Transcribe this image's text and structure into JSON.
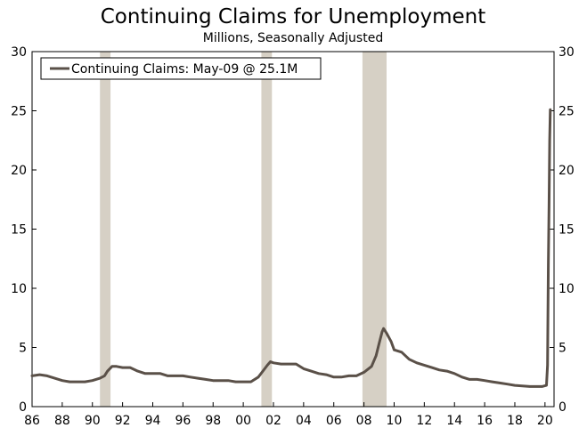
{
  "chart_data": {
    "type": "line",
    "title": "Continuing Claims for Unemployment",
    "subtitle": "Millions, Seasonally Adjusted",
    "xlabel": "",
    "ylabel": "",
    "xlim": [
      1986,
      2020.6
    ],
    "ylim": [
      0,
      30
    ],
    "y_ticks": [
      0,
      5,
      10,
      15,
      20,
      25,
      30
    ],
    "x_ticks": [
      {
        "value": 1986,
        "label": "86"
      },
      {
        "value": 1988,
        "label": "88"
      },
      {
        "value": 1990,
        "label": "90"
      },
      {
        "value": 1992,
        "label": "92"
      },
      {
        "value": 1994,
        "label": "94"
      },
      {
        "value": 1996,
        "label": "96"
      },
      {
        "value": 1998,
        "label": "98"
      },
      {
        "value": 2000,
        "label": "00"
      },
      {
        "value": 2002,
        "label": "02"
      },
      {
        "value": 2004,
        "label": "04"
      },
      {
        "value": 2006,
        "label": "06"
      },
      {
        "value": 2008,
        "label": "08"
      },
      {
        "value": 2010,
        "label": "10"
      },
      {
        "value": 2012,
        "label": "12"
      },
      {
        "value": 2014,
        "label": "14"
      },
      {
        "value": 2016,
        "label": "16"
      },
      {
        "value": 2018,
        "label": "18"
      },
      {
        "value": 2020,
        "label": "20"
      }
    ],
    "grid": false,
    "right_axis": true,
    "legend_position": "top-left",
    "recessions": [
      {
        "start": 1990.5,
        "end": 1991.2
      },
      {
        "start": 2001.2,
        "end": 2001.9
      },
      {
        "start": 2007.9,
        "end": 2009.5
      }
    ],
    "series": [
      {
        "name": "Continuing Claims: May-09 @ 25.1M",
        "color": "#5a5048",
        "points": [
          [
            1986.0,
            2.6
          ],
          [
            1986.5,
            2.7
          ],
          [
            1987.0,
            2.6
          ],
          [
            1987.5,
            2.4
          ],
          [
            1988.0,
            2.2
          ],
          [
            1988.5,
            2.1
          ],
          [
            1989.0,
            2.1
          ],
          [
            1989.5,
            2.1
          ],
          [
            1990.0,
            2.2
          ],
          [
            1990.5,
            2.4
          ],
          [
            1990.8,
            2.6
          ],
          [
            1991.0,
            3.0
          ],
          [
            1991.3,
            3.4
          ],
          [
            1991.6,
            3.4
          ],
          [
            1992.0,
            3.3
          ],
          [
            1992.5,
            3.3
          ],
          [
            1993.0,
            3.0
          ],
          [
            1993.5,
            2.8
          ],
          [
            1994.0,
            2.8
          ],
          [
            1994.5,
            2.8
          ],
          [
            1995.0,
            2.6
          ],
          [
            1995.5,
            2.6
          ],
          [
            1996.0,
            2.6
          ],
          [
            1996.5,
            2.5
          ],
          [
            1997.0,
            2.4
          ],
          [
            1997.5,
            2.3
          ],
          [
            1998.0,
            2.2
          ],
          [
            1998.5,
            2.2
          ],
          [
            1999.0,
            2.2
          ],
          [
            1999.5,
            2.1
          ],
          [
            2000.0,
            2.1
          ],
          [
            2000.5,
            2.1
          ],
          [
            2001.0,
            2.5
          ],
          [
            2001.3,
            3.0
          ],
          [
            2001.6,
            3.5
          ],
          [
            2001.8,
            3.8
          ],
          [
            2002.0,
            3.7
          ],
          [
            2002.5,
            3.6
          ],
          [
            2003.0,
            3.6
          ],
          [
            2003.5,
            3.6
          ],
          [
            2004.0,
            3.2
          ],
          [
            2004.5,
            3.0
          ],
          [
            2005.0,
            2.8
          ],
          [
            2005.5,
            2.7
          ],
          [
            2006.0,
            2.5
          ],
          [
            2006.5,
            2.5
          ],
          [
            2007.0,
            2.6
          ],
          [
            2007.5,
            2.6
          ],
          [
            2008.0,
            2.9
          ],
          [
            2008.5,
            3.4
          ],
          [
            2008.8,
            4.3
          ],
          [
            2009.0,
            5.3
          ],
          [
            2009.2,
            6.3
          ],
          [
            2009.3,
            6.6
          ],
          [
            2009.5,
            6.2
          ],
          [
            2009.8,
            5.5
          ],
          [
            2010.0,
            4.8
          ],
          [
            2010.5,
            4.6
          ],
          [
            2011.0,
            4.0
          ],
          [
            2011.5,
            3.7
          ],
          [
            2012.0,
            3.5
          ],
          [
            2012.5,
            3.3
          ],
          [
            2013.0,
            3.1
          ],
          [
            2013.5,
            3.0
          ],
          [
            2014.0,
            2.8
          ],
          [
            2014.5,
            2.5
          ],
          [
            2015.0,
            2.3
          ],
          [
            2015.5,
            2.3
          ],
          [
            2016.0,
            2.2
          ],
          [
            2016.5,
            2.1
          ],
          [
            2017.0,
            2.0
          ],
          [
            2017.5,
            1.9
          ],
          [
            2018.0,
            1.8
          ],
          [
            2018.5,
            1.75
          ],
          [
            2019.0,
            1.7
          ],
          [
            2019.5,
            1.7
          ],
          [
            2019.8,
            1.7
          ],
          [
            2020.1,
            1.8
          ],
          [
            2020.17,
            3.5
          ],
          [
            2020.22,
            12.0
          ],
          [
            2020.27,
            17.0
          ],
          [
            2020.31,
            22.5
          ],
          [
            2020.35,
            25.1
          ]
        ]
      }
    ]
  }
}
